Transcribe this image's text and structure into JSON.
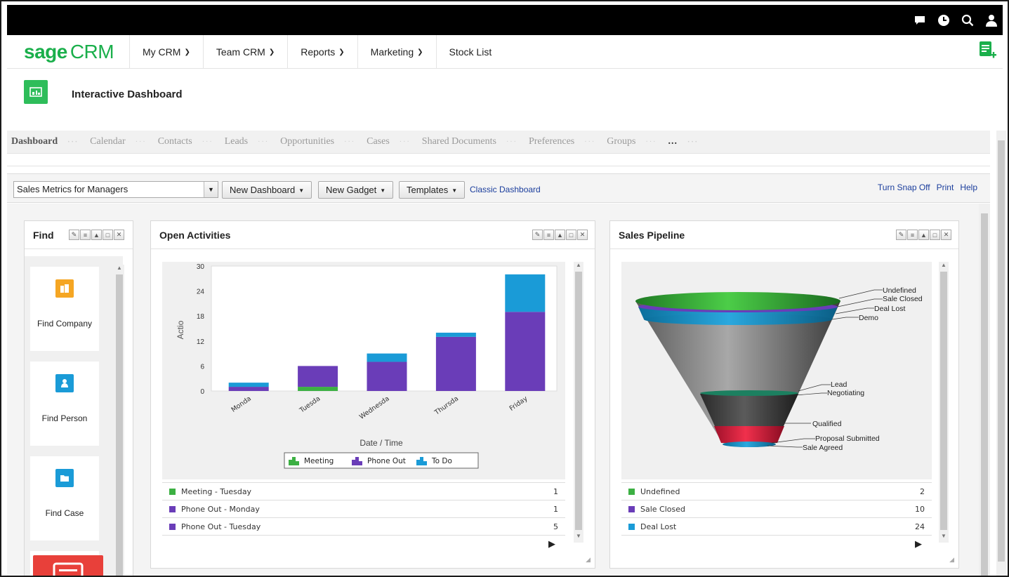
{
  "app": {
    "logo_brand": "sage",
    "logo_product": "CRM",
    "menu": [
      {
        "label": "My CRM",
        "dropdown": true
      },
      {
        "label": "Team CRM",
        "dropdown": true
      },
      {
        "label": "Reports",
        "dropdown": true
      },
      {
        "label": "Marketing",
        "dropdown": true
      },
      {
        "label": "Stock List",
        "dropdown": false
      }
    ],
    "top_icons": [
      "chat-icon",
      "clock-icon",
      "search-icon",
      "user-icon"
    ],
    "colors": {
      "brand_green": "#1aaf4b",
      "meeting": "#3cb043",
      "phone_out": "#6a3db8",
      "to_do": "#1a9bd7"
    }
  },
  "page": {
    "title": "Interactive Dashboard",
    "tabs": [
      "Dashboard",
      "Calendar",
      "Contacts",
      "Leads",
      "Opportunities",
      "Cases",
      "Shared Documents",
      "Preferences",
      "Groups",
      "..."
    ],
    "active_tab": "Dashboard"
  },
  "toolbar": {
    "dashboard_select": "Sales Metrics for Managers",
    "new_dashboard": "New Dashboard",
    "new_gadget": "New Gadget",
    "templates": "Templates",
    "classic_dashboard": "Classic Dashboard",
    "turn_snap_off": "Turn Snap Off",
    "print": "Print",
    "help": "Help"
  },
  "find_gadget": {
    "title": "Find",
    "items": [
      "Find Company",
      "Find Person",
      "Find Case"
    ]
  },
  "open_activities": {
    "title": "Open Activities",
    "rows": [
      {
        "label": "Meeting - Tuesday",
        "value": "1",
        "color": "#3cb043"
      },
      {
        "label": "Phone Out - Monday",
        "value": "1",
        "color": "#6a3db8"
      },
      {
        "label": "Phone Out - Tuesday",
        "value": "5",
        "color": "#6a3db8"
      }
    ]
  },
  "sales_pipeline": {
    "title": "Sales Pipeline",
    "funnel_labels": [
      "Undefined",
      "Sale Closed",
      "Deal Lost",
      "Demo",
      "Lead",
      "Negotiating",
      "Qualified",
      "Proposal Submitted",
      "Sale Agreed"
    ],
    "rows": [
      {
        "label": "Undefined",
        "value": "2",
        "color": "#3cb043"
      },
      {
        "label": "Sale Closed",
        "value": "10",
        "color": "#6a3db8"
      },
      {
        "label": "Deal Lost",
        "value": "24",
        "color": "#1a9bd7"
      }
    ]
  },
  "chart_data": [
    {
      "type": "bar",
      "stacked": true,
      "categories": [
        "Monda",
        "Tuesda",
        "Wednesda",
        "Thursda",
        "Friday"
      ],
      "series": [
        {
          "name": "Meeting",
          "values": [
            0,
            1,
            0,
            0,
            0
          ],
          "color": "#3cb043"
        },
        {
          "name": "Phone Out",
          "values": [
            1,
            5,
            7,
            13,
            19
          ],
          "color": "#6a3db8"
        },
        {
          "name": "To Do",
          "values": [
            1,
            0,
            2,
            1,
            9
          ],
          "color": "#1a9bd7"
        }
      ],
      "xlabel": "Date / Time",
      "ylabel": "Actio",
      "ylim": [
        0,
        30
      ],
      "yticks": [
        0,
        6,
        12,
        18,
        24,
        30
      ],
      "grid": false,
      "legend": "bottom"
    }
  ]
}
